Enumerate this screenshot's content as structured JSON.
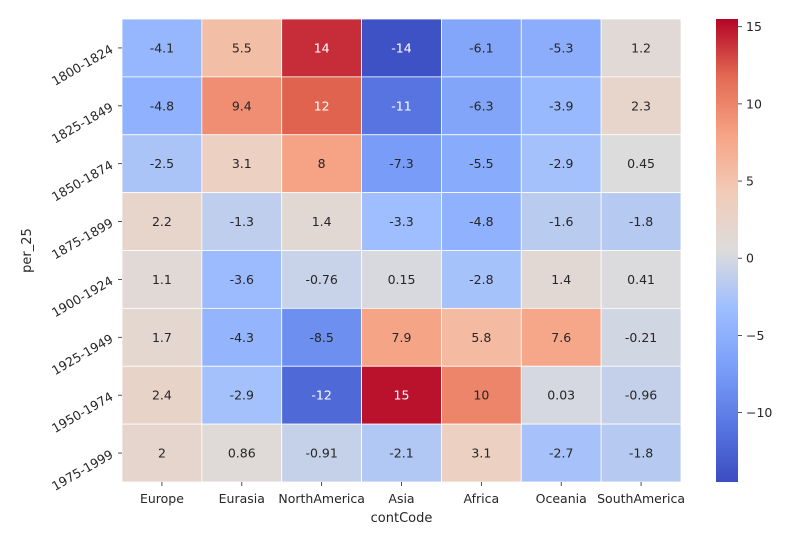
{
  "chart_data": {
    "type": "heatmap",
    "title": "",
    "xlabel": "contCode",
    "ylabel": "per_25",
    "columns": [
      "Europe",
      "Eurasia",
      "NorthAmerica",
      "Asia",
      "Africa",
      "Oceania",
      "SouthAmerica"
    ],
    "rows": [
      "1800-1824",
      "1825-1849",
      "1850-1874",
      "1875-1899",
      "1900-1924",
      "1925-1949",
      "1950-1974",
      "1975-1999"
    ],
    "values": [
      [
        -4.1,
        5.5,
        14,
        -14,
        -6.1,
        -5.3,
        1.2
      ],
      [
        -4.8,
        9.4,
        12,
        -11,
        -6.3,
        -3.9,
        2.3
      ],
      [
        -2.5,
        3.1,
        8,
        -7.3,
        -5.5,
        -2.9,
        0.45
      ],
      [
        2.2,
        -1.3,
        1.4,
        -3.3,
        -4.8,
        -1.6,
        -1.8
      ],
      [
        1.1,
        -3.6,
        -0.76,
        0.15,
        -2.8,
        1.4,
        0.41
      ],
      [
        1.7,
        -4.3,
        -8.5,
        7.9,
        5.8,
        7.6,
        -0.21
      ],
      [
        2.4,
        -2.9,
        -12,
        15,
        10,
        0.03,
        -0.96
      ],
      [
        2,
        0.86,
        -0.91,
        -2.1,
        3.1,
        -2.7,
        -1.8
      ]
    ],
    "labels": [
      [
        "-4.1",
        "5.5",
        "14",
        "-14",
        "-6.1",
        "-5.3",
        "1.2"
      ],
      [
        "-4.8",
        "9.4",
        "12",
        "-11",
        "-6.3",
        "-3.9",
        "2.3"
      ],
      [
        "-2.5",
        "3.1",
        "8",
        "-7.3",
        "-5.5",
        "-2.9",
        "0.45"
      ],
      [
        "2.2",
        "-1.3",
        "1.4",
        "-3.3",
        "-4.8",
        "-1.6",
        "-1.8"
      ],
      [
        "1.1",
        "-3.6",
        "-0.76",
        "0.15",
        "-2.8",
        "1.4",
        "0.41"
      ],
      [
        "1.7",
        "-4.3",
        "-8.5",
        "7.9",
        "5.8",
        "7.6",
        "-0.21"
      ],
      [
        "2.4",
        "-2.9",
        "-12",
        "15",
        "10",
        "0.03",
        "-0.96"
      ],
      [
        "2",
        "0.86",
        "-0.91",
        "-2.1",
        "3.1",
        "-2.7",
        "-1.8"
      ]
    ],
    "colormap": "coolwarm",
    "color_range": [
      -14.5,
      15.5
    ],
    "colorbar_ticks": [
      -10,
      -5,
      0,
      5,
      10,
      15
    ],
    "colorbar_tick_labels": [
      "−10",
      "−5",
      "0",
      "5",
      "10",
      "15"
    ],
    "grid": false,
    "legend": "colorbar-right"
  }
}
